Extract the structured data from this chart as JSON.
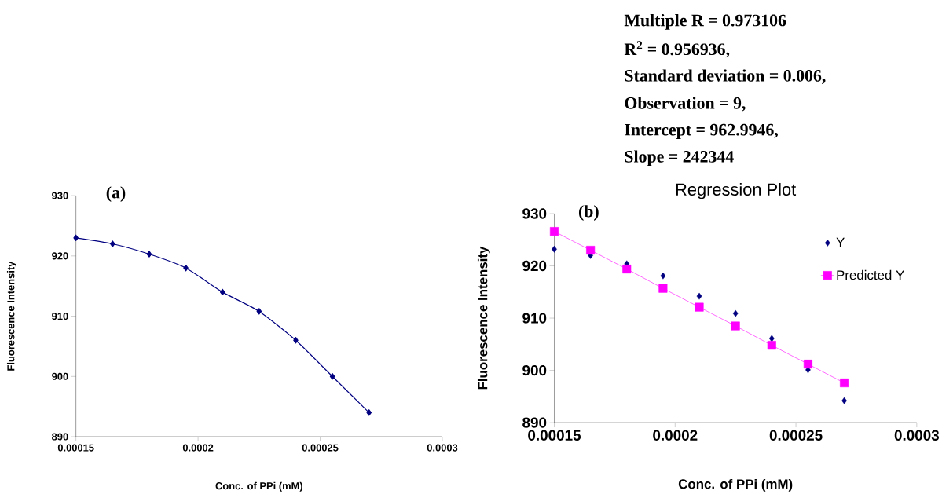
{
  "chart_data": [
    {
      "type": "line",
      "xlabel": "Conc. of PPi (mM)",
      "ylabel": "Fluorescence Intensity",
      "annotations": [
        "(a)"
      ],
      "x": [
        0.00015,
        0.000165,
        0.00018,
        0.000195,
        0.00021,
        0.000225,
        0.00024,
        0.000255,
        0.00027
      ],
      "series": [
        {
          "color": "#000080",
          "marker": "diamond",
          "values": [
            923.0,
            922.0,
            920.3,
            918.0,
            914.0,
            910.8,
            906.0,
            900.0,
            894.0
          ]
        }
      ],
      "xlim": [
        0.00015,
        0.0003
      ],
      "xticks": [
        0.00015,
        0.0002,
        0.00025,
        0.0003
      ],
      "ylim": [
        890,
        930
      ],
      "yticks": [
        890,
        900,
        910,
        920,
        930
      ],
      "grid": false,
      "legend": false
    },
    {
      "type": "scatter",
      "title": "Regression Plot",
      "xlabel": "Conc. of PPi (mM)",
      "ylabel": "Fluorescence Intensity",
      "annotations": [
        "(b)",
        "Multiple R = 0.973106",
        "R$^{2}$ = 0.956936,",
        "Standard deviation = 0.006,",
        "Observation = 9,",
        "Intercept = 962.9946,",
        "Slope = 242344"
      ],
      "x": [
        0.00015,
        0.000165,
        0.00018,
        0.000195,
        0.00021,
        0.000225,
        0.00024,
        0.000255,
        0.00027
      ],
      "series": [
        {
          "name": "Y",
          "type": "scatter",
          "color": "#000080",
          "marker": "diamond",
          "values": [
            923.2,
            922.0,
            920.4,
            918.1,
            914.2,
            910.9,
            906.1,
            900.1,
            894.2
          ]
        },
        {
          "name": "Predicted Y",
          "type": "line",
          "color": "#ff00ff",
          "marker": "square",
          "values": [
            926.6,
            923.0,
            919.4,
            915.7,
            912.1,
            908.5,
            904.8,
            901.2,
            897.6
          ]
        }
      ],
      "xlim": [
        0.00015,
        0.0003
      ],
      "xticks": [
        0.00015,
        0.0002,
        0.00025,
        0.0003
      ],
      "ylim": [
        890,
        930
      ],
      "yticks": [
        890,
        900,
        910,
        920,
        930
      ],
      "grid": false,
      "legend": "right"
    }
  ]
}
